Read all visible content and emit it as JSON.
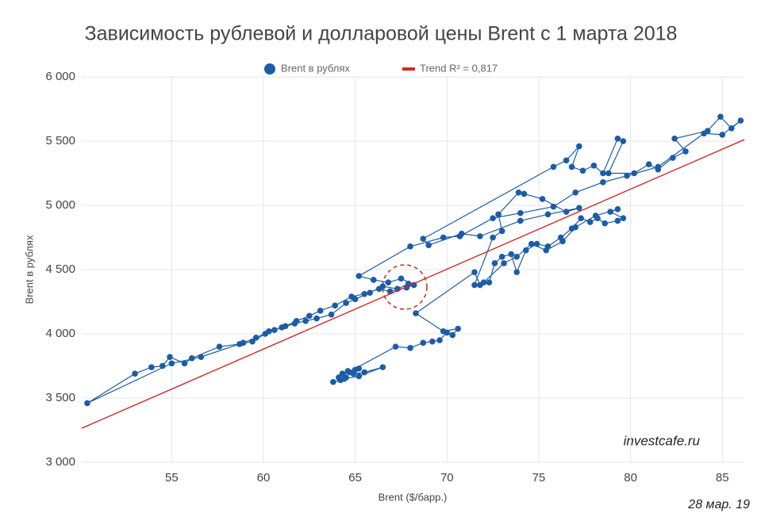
{
  "chart_data": {
    "type": "scatter",
    "title": "Зависимость рублевой и долларовой цены Brent с 1 марта 2018",
    "x_label": "Brent ($/барр.)",
    "y_label": "Brent в рублях",
    "source": "investcafe.ru",
    "date": "28 мар. 19",
    "connect": true,
    "grid": true,
    "legend": "top",
    "xlim": [
      50.1,
      86.2
    ],
    "ylim": [
      3000,
      6000
    ],
    "xticks": [
      55,
      60,
      65,
      70,
      75,
      80,
      85
    ],
    "yticks": [
      {
        "value": 3000,
        "label": "3 000"
      },
      {
        "value": 3500,
        "label": "3 500"
      },
      {
        "value": 4000,
        "label": "4 000"
      },
      {
        "value": 4500,
        "label": "4 500"
      },
      {
        "value": 5000,
        "label": "5 000"
      },
      {
        "value": 5500,
        "label": "5 500"
      },
      {
        "value": 6000,
        "label": "6 000"
      }
    ],
    "series": [
      {
        "name": "Brent в рублях",
        "color": "#1c5ca6",
        "x": [
          63.8,
          64.2,
          64.5,
          64.3,
          64.7,
          65.0,
          64.6,
          65.2,
          64.9,
          65.5,
          66.5,
          65.2,
          64.4,
          64.1,
          67.2,
          68.0,
          68.7,
          69.2,
          69.6,
          70.0,
          70.3,
          70.6,
          69.8,
          68.3,
          71.5,
          71.8,
          72.3,
          72.6,
          73.0,
          73.5,
          73.8,
          74.3,
          74.9,
          75.5,
          76.2,
          76.8,
          77.3,
          77.8,
          78.2,
          78.6,
          79.3,
          79.6,
          78.9,
          79.3,
          78.1,
          77.0,
          76.3,
          75.4,
          74.6,
          73.8,
          73.1,
          72.0,
          71.5,
          72.5,
          73.0,
          72.8,
          73.9,
          74.2,
          75.2,
          76.5,
          77.2,
          75.5,
          74.0,
          71.8,
          70.8,
          69.0,
          68.7,
          75.8,
          76.5,
          77.2,
          76.8,
          77.4,
          78.0,
          78.5,
          79.3,
          79.6,
          78.8,
          80.2,
          81.0,
          81.5,
          82.3,
          83.0,
          82.4,
          84.2,
          84.9,
          85.5,
          86.0,
          85.0,
          84.0,
          81.5,
          79.8,
          78.5,
          77.0,
          75.8,
          74.0,
          72.5,
          70.7,
          69.8,
          68.0,
          65.2,
          66.0,
          66.8,
          67.5,
          68.2,
          67.8,
          66.9,
          66.3,
          65.5,
          64.8,
          63.9,
          63.1,
          62.5,
          61.8,
          61.2,
          60.6,
          60.1,
          59.4,
          58.7,
          57.6,
          56.1,
          55.7,
          54.9,
          54.5,
          53.9,
          53.0,
          50.4,
          55.0,
          56.6,
          58.9,
          59.6,
          60.3,
          61.0,
          61.7,
          62.3,
          62.9,
          63.7,
          64.5,
          65.0,
          65.8,
          66.5,
          67.3,
          67.9
        ],
        "y": [
          3625,
          3640,
          3660,
          3690,
          3700,
          3720,
          3710,
          3730,
          3690,
          3700,
          3740,
          3670,
          3650,
          3660,
          3900,
          3890,
          3930,
          3940,
          3950,
          4010,
          3990,
          4040,
          4020,
          4160,
          4480,
          4380,
          4400,
          4550,
          4600,
          4620,
          4480,
          4650,
          4700,
          4680,
          4750,
          4820,
          4900,
          4870,
          4900,
          4860,
          4880,
          4900,
          4950,
          4970,
          4920,
          4830,
          4720,
          4650,
          4700,
          4600,
          4550,
          4400,
          4380,
          4750,
          4800,
          4930,
          5100,
          5090,
          5050,
          4950,
          4980,
          4930,
          4880,
          4760,
          4780,
          4690,
          4740,
          5300,
          5350,
          5460,
          5300,
          5270,
          5310,
          5250,
          5520,
          5500,
          5250,
          5250,
          5320,
          5280,
          5370,
          5420,
          5520,
          5580,
          5690,
          5600,
          5660,
          5550,
          5560,
          5300,
          5230,
          5180,
          5100,
          4990,
          4940,
          4900,
          4760,
          4750,
          4680,
          4450,
          4420,
          4400,
          4430,
          4380,
          4360,
          4330,
          4350,
          4310,
          4290,
          4220,
          4180,
          4140,
          4100,
          4060,
          4030,
          4000,
          3940,
          3920,
          3900,
          3810,
          3770,
          3820,
          3750,
          3740,
          3690,
          3460,
          3770,
          3820,
          3930,
          3970,
          4020,
          4050,
          4080,
          4100,
          4120,
          4150,
          4240,
          4270,
          4320,
          4370,
          4350,
          4390
        ]
      },
      {
        "name": "Trend R² = 0,817",
        "color": "#d62728",
        "x": [
          50.1,
          86.2
        ],
        "y": [
          3265,
          5512
        ]
      }
    ]
  }
}
